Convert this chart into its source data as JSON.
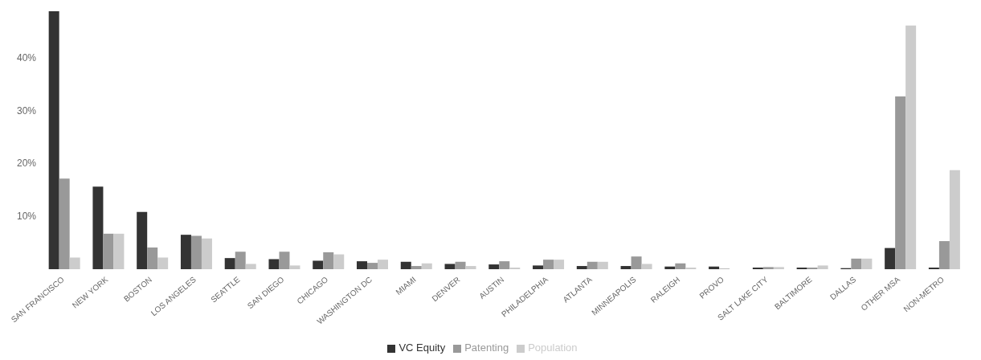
{
  "chart_data": {
    "type": "bar",
    "categories": [
      "SAN FRANCISCO",
      "NEW YORK",
      "BOSTON",
      "LOS ANGELES",
      "SEATTLE",
      "SAN DIEGO",
      "CHICAGO",
      "WASHINGTON DC",
      "MIAMI",
      "DENVER",
      "AUSTIN",
      "PHILADELPHIA",
      "ATLANTA",
      "MINNEAPOLIS",
      "RALEIGH",
      "PROVO",
      "SALT LAKE CITY",
      "BALTIMORE",
      "DALLAS",
      "OTHER MSA",
      "NON-METRO"
    ],
    "series": [
      {
        "name": "VC Equity",
        "color": "#333333",
        "values": [
          48.7,
          15.6,
          10.8,
          6.5,
          2.1,
          1.9,
          1.6,
          1.5,
          1.4,
          1.0,
          0.9,
          0.7,
          0.6,
          0.6,
          0.5,
          0.5,
          0.3,
          0.3,
          0.2,
          4.0,
          0.3
        ]
      },
      {
        "name": "Patenting",
        "color": "#999999",
        "values": [
          17.1,
          6.7,
          4.1,
          6.3,
          3.3,
          3.3,
          3.2,
          1.2,
          0.6,
          1.4,
          1.5,
          1.8,
          1.4,
          2.4,
          1.1,
          0.1,
          0.4,
          0.3,
          2.0,
          32.6,
          5.3
        ]
      },
      {
        "name": "Population",
        "color": "#cccccc",
        "values": [
          2.2,
          6.7,
          2.2,
          5.8,
          1.0,
          0.7,
          2.8,
          1.8,
          1.1,
          0.6,
          0.3,
          1.8,
          1.4,
          1.0,
          0.3,
          null,
          0.4,
          0.7,
          2.0,
          46.0,
          18.7
        ]
      }
    ],
    "ylim": [
      0,
      49
    ],
    "yticks": [
      {
        "value": 10,
        "label": "10%"
      },
      {
        "value": 20,
        "label": "20%"
      },
      {
        "value": 30,
        "label": "30%"
      },
      {
        "value": 40,
        "label": "40%"
      }
    ],
    "grid": false,
    "legend": "bottom"
  }
}
